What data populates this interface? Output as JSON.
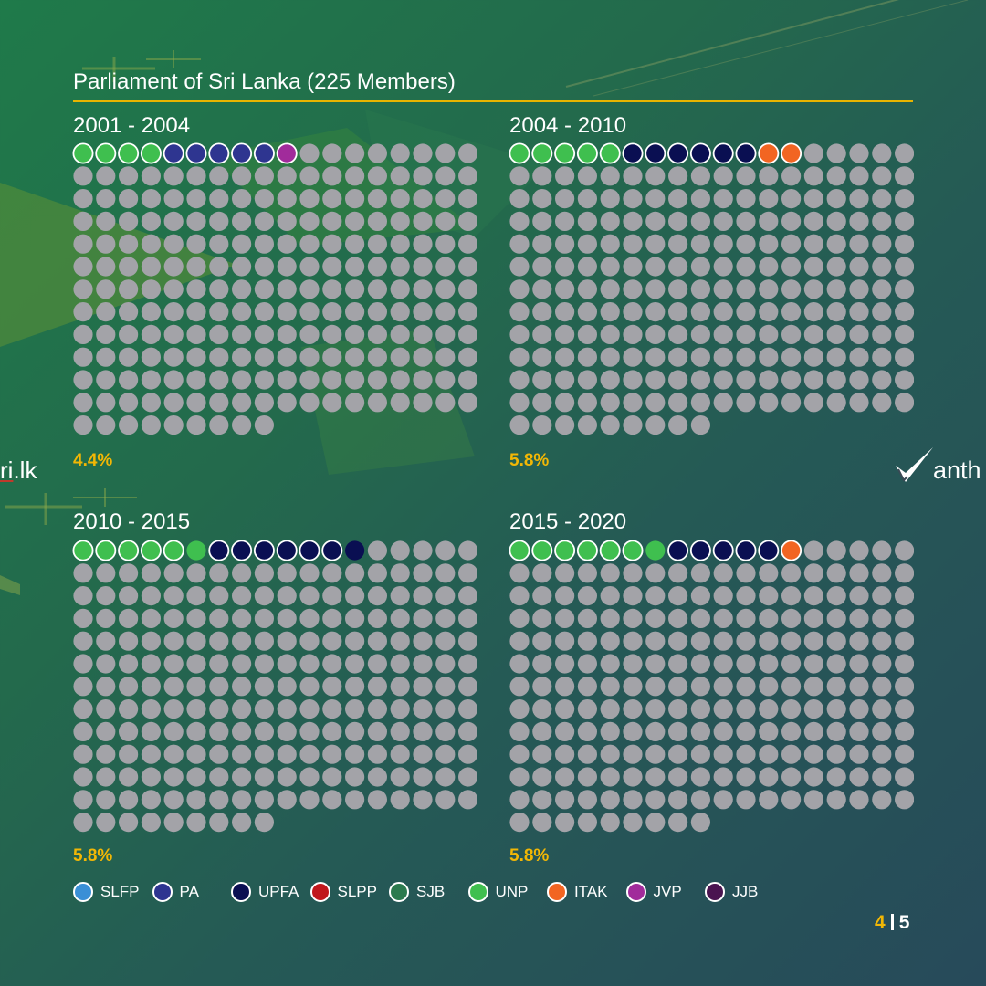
{
  "page_title": "Parliament of Sri Lanka (225 Members)",
  "colors": {
    "empty": "#a3a3a8",
    "SLFP": "#3a8fd6",
    "PA": "#2e3590",
    "UPFA": "#0a0f52",
    "SLPP": "#c0181c",
    "SJB": "#2b7a4e",
    "UNP": "#3fbf4f",
    "ITAK": "#f26522",
    "JVP": "#a12b9b",
    "JJB": "#4a1450"
  },
  "icons": [
    "checkmark-logo-icon"
  ],
  "brand_left": {
    "prefix": "",
    "underlined": "ri",
    "suffix": ".lk"
  },
  "brand_right": {
    "text": "anth"
  },
  "chart_data": [
    {
      "type": "waffle",
      "title": "2001 - 2004",
      "total": 225,
      "percentage_label": "4.4%",
      "seats": [
        {
          "party": "UNP",
          "count": 4,
          "outlined": true
        },
        {
          "party": "PA",
          "count": 5,
          "outlined": true
        },
        {
          "party": "JVP",
          "count": 1,
          "outlined": true
        }
      ]
    },
    {
      "type": "waffle",
      "title": "2004 - 2010",
      "total": 225,
      "percentage_label": "5.8%",
      "seats": [
        {
          "party": "UNP",
          "count": 5,
          "outlined": true
        },
        {
          "party": "UPFA",
          "count": 6,
          "outlined": true
        },
        {
          "party": "ITAK",
          "count": 2,
          "outlined": true
        }
      ]
    },
    {
      "type": "waffle",
      "title": "2010 - 2015",
      "total": 225,
      "percentage_label": "5.8%",
      "seats": [
        {
          "party": "UNP",
          "count": 5,
          "outlined": true
        },
        {
          "party": "UNP",
          "count": 1,
          "outlined": false
        },
        {
          "party": "UPFA",
          "count": 6,
          "outlined": true
        },
        {
          "party": "UPFA",
          "count": 1,
          "outlined": false
        }
      ]
    },
    {
      "type": "waffle",
      "title": "2015 - 2020",
      "total": 225,
      "percentage_label": "5.8%",
      "seats": [
        {
          "party": "UNP",
          "count": 6,
          "outlined": true
        },
        {
          "party": "UNP",
          "count": 1,
          "outlined": false
        },
        {
          "party": "UPFA",
          "count": 5,
          "outlined": true
        },
        {
          "party": "ITAK",
          "count": 1,
          "outlined": true
        }
      ]
    }
  ],
  "legend": [
    "SLFP",
    "PA",
    "UPFA",
    "SLPP",
    "SJB",
    "UNP",
    "ITAK",
    "JVP",
    "JJB"
  ],
  "page": {
    "current": "4",
    "total": "5"
  }
}
